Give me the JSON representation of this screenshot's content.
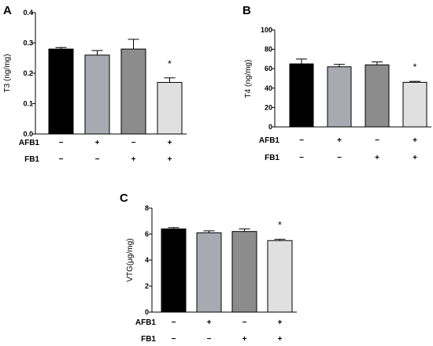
{
  "chart_data": [
    {
      "type": "bar",
      "panel": "A",
      "ylabel": "T3 (ng/mg)",
      "ylim": [
        0.0,
        0.4
      ],
      "yticks": [
        "0.0",
        "0.1",
        "0.2",
        "0.3",
        "0.4"
      ],
      "categories": [
        "AFB1 − / FB1 −",
        "AFB1 + / FB1 −",
        "AFB1 − / FB1 +",
        "AFB1 + / FB1 +"
      ],
      "values": [
        0.28,
        0.26,
        0.28,
        0.17
      ],
      "errors": [
        0.005,
        0.015,
        0.032,
        0.015
      ],
      "colors": [
        "#000000",
        "#a9a9b1",
        "#8c8c8c",
        "#e0e0e0"
      ],
      "significance": [
        "",
        "",
        "",
        "*"
      ],
      "factor_rows": [
        {
          "label": "AFB1",
          "signs": [
            "−",
            "+",
            "−",
            "+"
          ]
        },
        {
          "label": "FB1",
          "signs": [
            "−",
            "−",
            "+",
            "+"
          ]
        }
      ]
    },
    {
      "type": "bar",
      "panel": "B",
      "ylabel": "T4  (ng/mg)",
      "ylim": [
        0,
        100
      ],
      "yticks": [
        "0",
        "20",
        "40",
        "60",
        "80",
        "100"
      ],
      "categories": [
        "AFB1 − / FB1 −",
        "AFB1 + / FB1 −",
        "AFB1 − / FB1 +",
        "AFB1 + / FB1 +"
      ],
      "values": [
        65,
        62,
        64,
        46
      ],
      "errors": [
        5,
        2.5,
        3,
        1
      ],
      "colors": [
        "#000000",
        "#a9a9b1",
        "#8c8c8c",
        "#e0e0e0"
      ],
      "significance": [
        "",
        "",
        "",
        "*"
      ],
      "factor_rows": [
        {
          "label": "AFB1",
          "signs": [
            "−",
            "+",
            "−",
            "+"
          ]
        },
        {
          "label": "FB1",
          "signs": [
            "−",
            "−",
            "+",
            "+"
          ]
        }
      ]
    },
    {
      "type": "bar",
      "panel": "C",
      "ylabel": "VTG(μg/mg)",
      "ylim": [
        0,
        8
      ],
      "yticks": [
        "0",
        "2",
        "4",
        "6",
        "8"
      ],
      "categories": [
        "AFB1 − / FB1 −",
        "AFB1 + / FB1 −",
        "AFB1 − / FB1 +",
        "AFB1 + / FB1 +"
      ],
      "values": [
        6.4,
        6.1,
        6.2,
        5.5
      ],
      "errors": [
        0.1,
        0.15,
        0.2,
        0.1
      ],
      "colors": [
        "#000000",
        "#a9a9b1",
        "#8c8c8c",
        "#e0e0e0"
      ],
      "significance": [
        "",
        "",
        "",
        "*"
      ],
      "factor_rows": [
        {
          "label": "AFB1",
          "signs": [
            "−",
            "+",
            "−",
            "+"
          ]
        },
        {
          "label": "FB1",
          "signs": [
            "−",
            "−",
            "+",
            "+"
          ]
        }
      ]
    }
  ]
}
